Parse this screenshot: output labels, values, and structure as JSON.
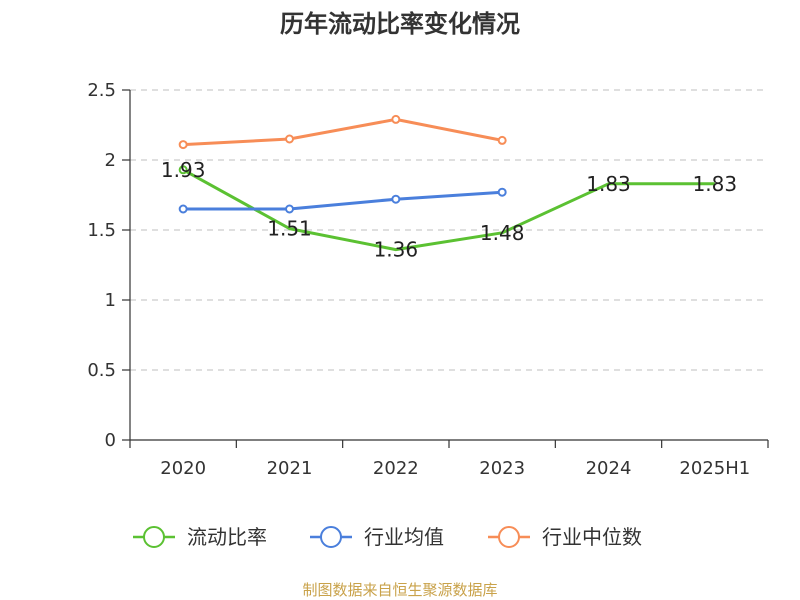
{
  "chart_data": {
    "type": "line",
    "title": "历年流动比率变化情况",
    "categories": [
      "2020",
      "2021",
      "2022",
      "2023",
      "2024",
      "2025H1"
    ],
    "y_ticks": [
      "0",
      "0.5",
      "1",
      "1.5",
      "2",
      "2.5"
    ],
    "ylim": [
      0,
      2.5
    ],
    "grid": true,
    "legend_position": "bottom",
    "series": [
      {
        "name": "流动比率",
        "color": "#5bc132",
        "values": [
          1.93,
          1.51,
          1.36,
          1.48,
          1.83,
          1.83
        ],
        "labels": [
          "1.93",
          "1.51",
          "1.36",
          "1.48",
          "1.83",
          "1.83"
        ],
        "show_labels": true,
        "markers": "first-only"
      },
      {
        "name": "行业均值",
        "color": "#4a7fdc",
        "values": [
          1.65,
          1.65,
          1.72,
          1.77,
          null,
          null
        ],
        "show_labels": false,
        "markers": "all"
      },
      {
        "name": "行业中位数",
        "color": "#f78d57",
        "values": [
          2.11,
          2.15,
          2.29,
          2.14,
          null,
          null
        ],
        "show_labels": false,
        "markers": "all"
      }
    ]
  },
  "source": "制图数据来自恒生聚源数据库"
}
